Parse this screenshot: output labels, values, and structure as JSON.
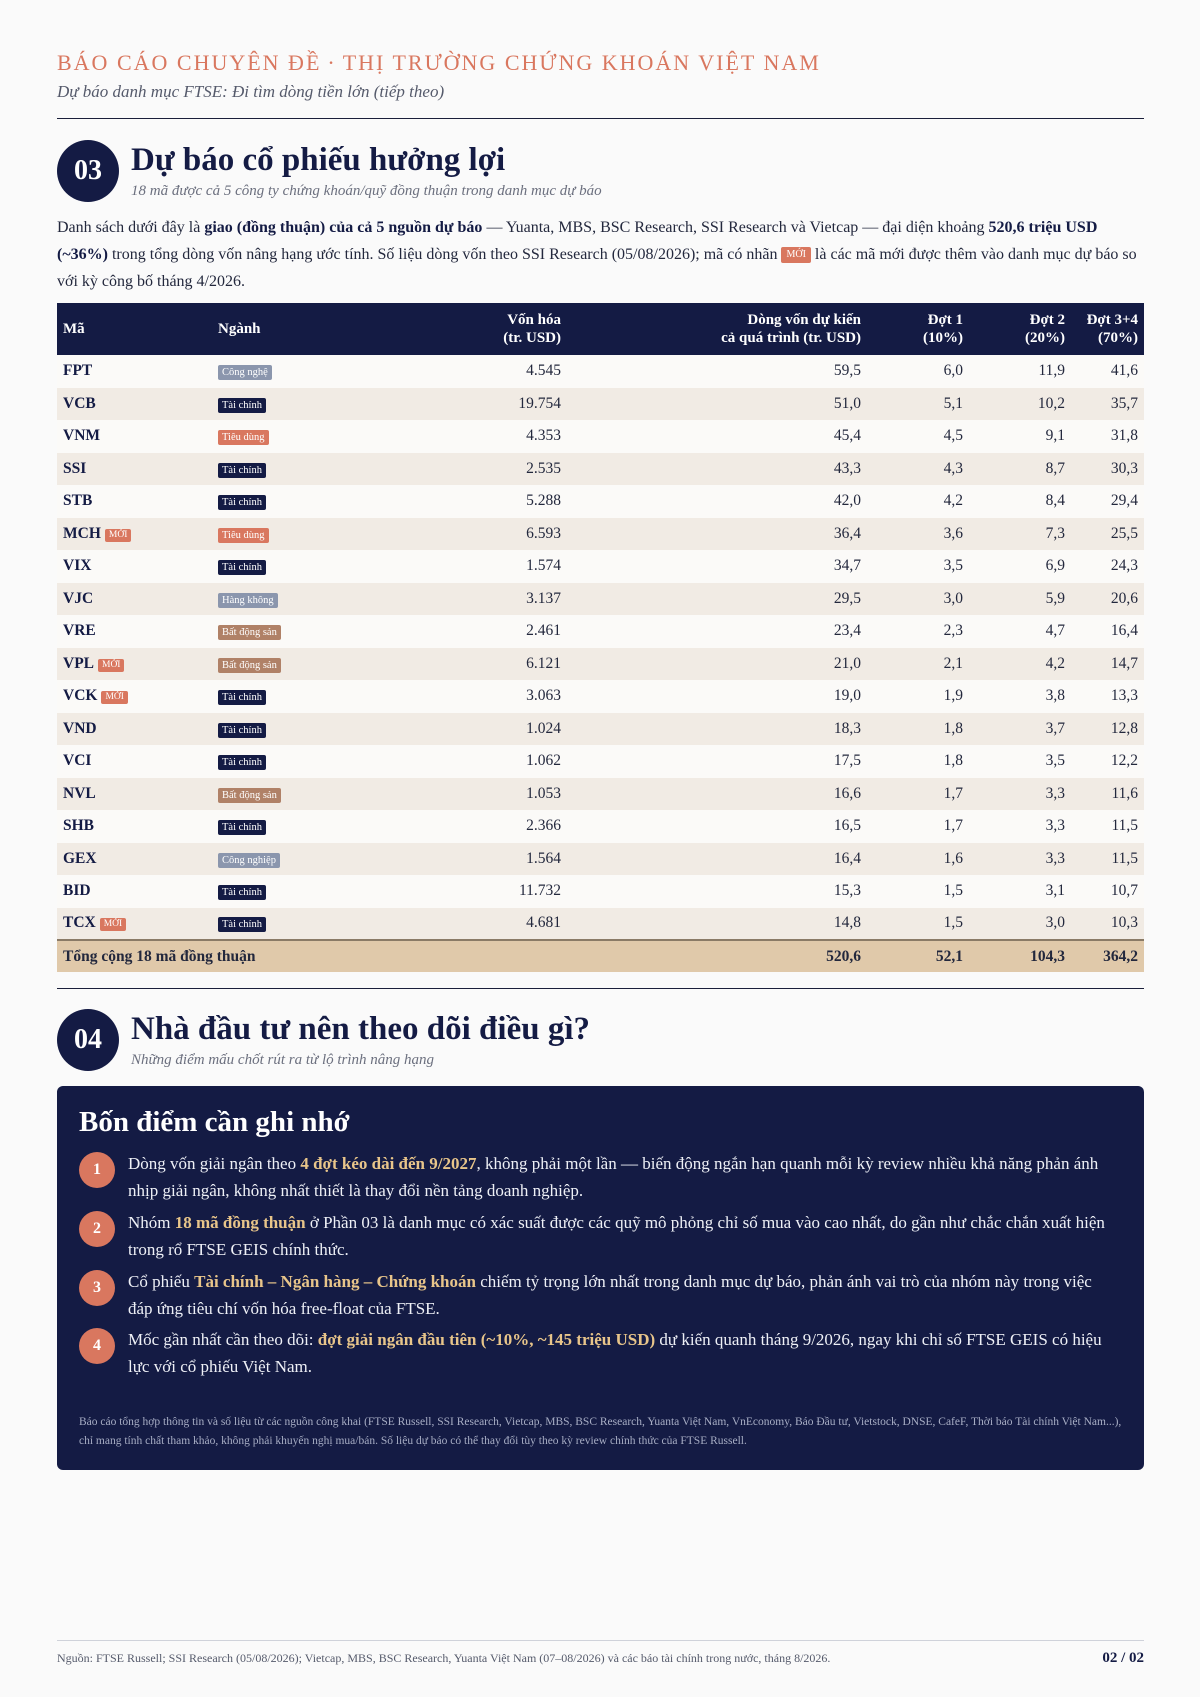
{
  "header": {
    "title_left": "BÁO CÁO CHUYÊN ĐỀ",
    "separator": "·",
    "title_right": "THỊ TRƯỜNG CHỨNG KHOÁN VIỆT NAM",
    "subtitle": "Dự báo danh mục FTSE: Đi tìm dòng tiền lớn (tiếp theo)"
  },
  "section3": {
    "number": "03",
    "title": "Dự báo cổ phiếu hưởng lợi",
    "subtitle": "18 mã được cả 5 công ty chứng khoán/quỹ đồng thuận trong danh mục dự báo",
    "intro": {
      "p1": "Danh sách dưới đây là ",
      "b1": "giao (đồng thuận) của cả 5 nguồn dự báo",
      "p2": " — Yuanta, MBS, BSC Research, SSI Research và Vietcap — đại diện khoảng ",
      "b2": "520,6 triệu USD (~36%)",
      "p3": " trong tổng dòng vốn nâng hạng ước tính. Số liệu dòng vốn theo SSI Research (05/08/2026); mã có nhãn ",
      "tag": "MỚI",
      "p4": " là các mã mới được thêm vào danh mục dự báo so với kỳ công bố tháng 4/2026."
    },
    "table": {
      "headers": {
        "code": "Mã",
        "sector": "Ngành",
        "mcap_1": "Vốn hóa",
        "mcap_2": "(tr. USD)",
        "flow_1": "Dòng vốn dự kiến",
        "flow_2": "cả quá trình (tr. USD)",
        "t1_1": "Đợt 1",
        "t1_2": "(10%)",
        "t2_1": "Đợt 2",
        "t2_2": "(20%)",
        "t34_1": "Đợt 3+4",
        "t34_2": "(70%)"
      },
      "new_label": "MỚI",
      "rows": [
        {
          "code": "FPT",
          "new": false,
          "sector": "Công nghệ",
          "sector_type": "tech",
          "mcap": "4.545",
          "flow": "59,5",
          "t1": "6,0",
          "t2": "11,9",
          "t34": "41,6"
        },
        {
          "code": "VCB",
          "new": false,
          "sector": "Tài chính",
          "sector_type": "fin",
          "mcap": "19.754",
          "flow": "51,0",
          "t1": "5,1",
          "t2": "10,2",
          "t34": "35,7"
        },
        {
          "code": "VNM",
          "new": false,
          "sector": "Tiêu dùng",
          "sector_type": "cons",
          "mcap": "4.353",
          "flow": "45,4",
          "t1": "4,5",
          "t2": "9,1",
          "t34": "31,8"
        },
        {
          "code": "SSI",
          "new": false,
          "sector": "Tài chính",
          "sector_type": "fin",
          "mcap": "2.535",
          "flow": "43,3",
          "t1": "4,3",
          "t2": "8,7",
          "t34": "30,3"
        },
        {
          "code": "STB",
          "new": false,
          "sector": "Tài chính",
          "sector_type": "fin",
          "mcap": "5.288",
          "flow": "42,0",
          "t1": "4,2",
          "t2": "8,4",
          "t34": "29,4"
        },
        {
          "code": "MCH",
          "new": true,
          "sector": "Tiêu dùng",
          "sector_type": "cons",
          "mcap": "6.593",
          "flow": "36,4",
          "t1": "3,6",
          "t2": "7,3",
          "t34": "25,5"
        },
        {
          "code": "VIX",
          "new": false,
          "sector": "Tài chính",
          "sector_type": "fin",
          "mcap": "1.574",
          "flow": "34,7",
          "t1": "3,5",
          "t2": "6,9",
          "t34": "24,3"
        },
        {
          "code": "VJC",
          "new": false,
          "sector": "Hàng không",
          "sector_type": "air",
          "mcap": "3.137",
          "flow": "29,5",
          "t1": "3,0",
          "t2": "5,9",
          "t34": "20,6"
        },
        {
          "code": "VRE",
          "new": false,
          "sector": "Bất động sản",
          "sector_type": "re",
          "mcap": "2.461",
          "flow": "23,4",
          "t1": "2,3",
          "t2": "4,7",
          "t34": "16,4"
        },
        {
          "code": "VPL",
          "new": true,
          "sector": "Bất động sản",
          "sector_type": "re",
          "mcap": "6.121",
          "flow": "21,0",
          "t1": "2,1",
          "t2": "4,2",
          "t34": "14,7"
        },
        {
          "code": "VCK",
          "new": true,
          "sector": "Tài chính",
          "sector_type": "fin",
          "mcap": "3.063",
          "flow": "19,0",
          "t1": "1,9",
          "t2": "3,8",
          "t34": "13,3"
        },
        {
          "code": "VND",
          "new": false,
          "sector": "Tài chính",
          "sector_type": "fin",
          "mcap": "1.024",
          "flow": "18,3",
          "t1": "1,8",
          "t2": "3,7",
          "t34": "12,8"
        },
        {
          "code": "VCI",
          "new": false,
          "sector": "Tài chính",
          "sector_type": "fin",
          "mcap": "1.062",
          "flow": "17,5",
          "t1": "1,8",
          "t2": "3,5",
          "t34": "12,2"
        },
        {
          "code": "NVL",
          "new": false,
          "sector": "Bất động sản",
          "sector_type": "re",
          "mcap": "1.053",
          "flow": "16,6",
          "t1": "1,7",
          "t2": "3,3",
          "t34": "11,6"
        },
        {
          "code": "SHB",
          "new": false,
          "sector": "Tài chính",
          "sector_type": "fin",
          "mcap": "2.366",
          "flow": "16,5",
          "t1": "1,7",
          "t2": "3,3",
          "t34": "11,5"
        },
        {
          "code": "GEX",
          "new": false,
          "sector": "Công nghiệp",
          "sector_type": "ind",
          "mcap": "1.564",
          "flow": "16,4",
          "t1": "1,6",
          "t2": "3,3",
          "t34": "11,5"
        },
        {
          "code": "BID",
          "new": false,
          "sector": "Tài chính",
          "sector_type": "fin",
          "mcap": "11.732",
          "flow": "15,3",
          "t1": "1,5",
          "t2": "3,1",
          "t34": "10,7"
        },
        {
          "code": "TCX",
          "new": true,
          "sector": "Tài chính",
          "sector_type": "fin",
          "mcap": "4.681",
          "flow": "14,8",
          "t1": "1,5",
          "t2": "3,0",
          "t34": "10,3"
        }
      ],
      "total": {
        "label": "Tổng cộng 18 mã đồng thuận",
        "flow": "520,6",
        "t1": "52,1",
        "t2": "104,3",
        "t34": "364,2"
      }
    }
  },
  "section4": {
    "number": "04",
    "title": "Nhà đầu tư nên theo dõi điều gì?",
    "subtitle": "Những điểm mấu chốt rút ra từ lộ trình nâng hạng",
    "panel_title": "Bốn điểm cần ghi nhớ",
    "points": [
      {
        "num": "1",
        "a": "Dòng vốn giải ngân theo ",
        "hl": "4 đợt kéo dài đến 9/2027",
        "b": ", không phải một lần — biến động ngắn hạn quanh mỗi kỳ review nhiều khả năng phản ánh nhịp giải ngân, không nhất thiết là thay đổi nền tảng doanh nghiệp."
      },
      {
        "num": "2",
        "a": "Nhóm ",
        "hl": "18 mã đồng thuận",
        "b": " ở Phần 03 là danh mục có xác suất được các quỹ mô phỏng chỉ số mua vào cao nhất, do gần như chắc chắn xuất hiện trong rổ FTSE GEIS chính thức."
      },
      {
        "num": "3",
        "a": "Cổ phiếu ",
        "hl": "Tài chính – Ngân hàng – Chứng khoán",
        "b": " chiếm tỷ trọng lớn nhất trong danh mục dự báo, phản ánh vai trò của nhóm này trong việc đáp ứng tiêu chí vốn hóa free-float của FTSE."
      },
      {
        "num": "4",
        "a": "Mốc gần nhất cần theo dõi: ",
        "hl": "đợt giải ngân đầu tiên (~10%, ~145 triệu USD)",
        "b": " dự kiến quanh tháng 9/2026, ngay khi chỉ số FTSE GEIS có hiệu lực với cổ phiếu Việt Nam."
      }
    ],
    "disclaimer": "Báo cáo tổng hợp thông tin và số liệu từ các nguồn công khai (FTSE Russell, SSI Research, Vietcap, MBS, BSC Research, Yuanta Việt Nam, VnEconomy, Báo Đầu tư, Vietstock, DNSE, CafeF, Thời báo Tài chính Việt Nam...), chỉ mang tính chất tham khảo, không phải khuyến nghị mua/bán. Số liệu dự báo có thể thay đổi tùy theo kỳ review chính thức của FTSE Russell."
  },
  "footer": {
    "source": "Nguồn: FTSE Russell; SSI Research (05/08/2026); Vietcap, MBS, BSC Research, Yuanta Việt Nam (07–08/2026) và các báo tài chính trong nước, tháng 8/2026.",
    "page": "02 / 02"
  }
}
